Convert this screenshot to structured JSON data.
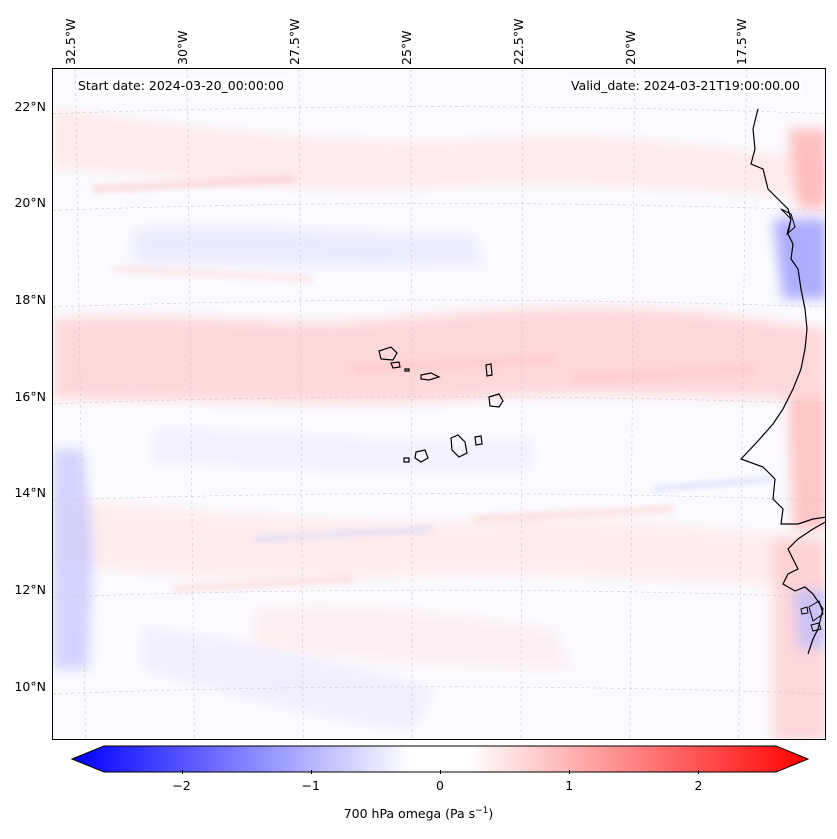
{
  "header": {
    "start_label": "Start date: 2024-03-20_00:00:00",
    "valid_label": "Valid_date: 2024-03-21T19:00:00.00"
  },
  "map": {
    "extent": {
      "lon_min": -33.0,
      "lon_max": -15.7,
      "lat_min": 8.9,
      "lat_max": 22.8
    },
    "lon_ticks": [
      {
        "value": -32.5,
        "label": "32.5°W"
      },
      {
        "value": -30.0,
        "label": "30°W"
      },
      {
        "value": -27.5,
        "label": "27.5°W"
      },
      {
        "value": -25.0,
        "label": "25°W"
      },
      {
        "value": -22.5,
        "label": "22.5°W"
      },
      {
        "value": -20.0,
        "label": "20°W"
      },
      {
        "value": -17.5,
        "label": "17.5°W"
      }
    ],
    "lat_ticks": [
      {
        "value": 22,
        "label": "22°N"
      },
      {
        "value": 20,
        "label": "20°N"
      },
      {
        "value": 18,
        "label": "18°N"
      },
      {
        "value": 16,
        "label": "16°N"
      },
      {
        "value": 14,
        "label": "14°N"
      },
      {
        "value": 12,
        "label": "12°N"
      },
      {
        "value": 10,
        "label": "10°N"
      }
    ],
    "colors": {
      "positive": "#ff0000",
      "negative": "#0000ff",
      "coast": "#000000",
      "grid": "#c8c8c8"
    }
  },
  "colorbar": {
    "title": "700 hPa omega (Pa s",
    "title_sup": "−1",
    "title_end": ")",
    "range": [
      -2.6,
      2.6
    ],
    "ticks": [
      {
        "value": -2,
        "label": "−2"
      },
      {
        "value": -1,
        "label": "−1"
      },
      {
        "value": 0,
        "label": "0"
      },
      {
        "value": 1,
        "label": "1"
      },
      {
        "value": 2,
        "label": "2"
      }
    ]
  }
}
